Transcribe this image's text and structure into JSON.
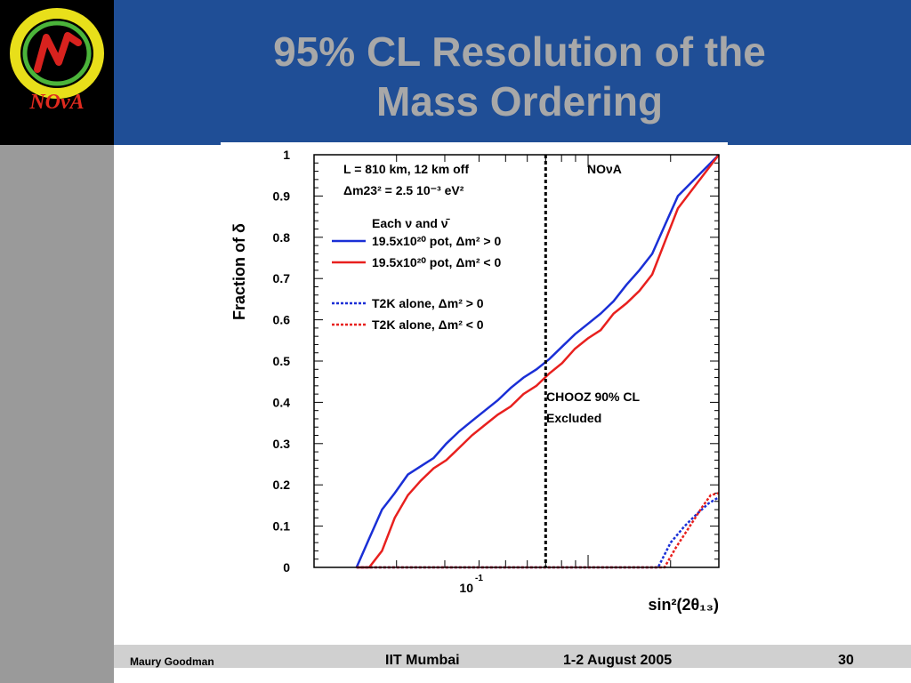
{
  "slide": {
    "title_line1": "95% CL Resolution of the",
    "title_line2": "Mass Ordering",
    "logo_text": "NOvA",
    "colors": {
      "header_bg": "#1f4e96",
      "title_text": "#a8a8a8",
      "sidebar": "#9a9a9a",
      "logo_bg": "#000000"
    }
  },
  "footer": {
    "author": "Maury Goodman",
    "venue": "IIT Mumbai",
    "date": "1-2 August 2005",
    "page": "30"
  },
  "chart_data": {
    "type": "line",
    "ylabel": "Fraction of δ",
    "xlabel": "sin²(2θ₁₃)",
    "x_scale": "log",
    "xlim": [
      0.01,
      0.3
    ],
    "ylim": [
      0,
      1
    ],
    "yticks": [
      "0",
      "0.1",
      "0.2",
      "0.3",
      "0.4",
      "0.5",
      "0.6",
      "0.7",
      "0.8",
      "0.9",
      "1"
    ],
    "xtick_label": "10",
    "xtick_label_exp": "-1",
    "annotations": {
      "line1": "L = 810 km, 12 km off",
      "line2": "Δm23² = 2.5 10⁻³ eV²",
      "experiment": "NOνA",
      "legend_header": "Each ν and ν̄",
      "chooz_line1": "CHOOZ 90% CL",
      "chooz_line2": "Excluded"
    },
    "chooz_limit_x": 0.07,
    "series": [
      {
        "name": "19.5x10²⁰ pot, Δm² > 0",
        "color": "#1a2fd6",
        "dash": "solid",
        "x": [
          0.0143,
          0.0159,
          0.0177,
          0.0197,
          0.022,
          0.0245,
          0.0273,
          0.0304,
          0.0339,
          0.0377,
          0.042,
          0.0468,
          0.0522,
          0.0581,
          0.0648,
          0.0722,
          0.0804,
          0.0896,
          0.0998,
          0.1112,
          0.1239,
          0.1381,
          0.1538,
          0.1714,
          0.1909,
          0.2127,
          0.3
        ],
        "y": [
          0,
          0.07,
          0.14,
          0.18,
          0.225,
          0.245,
          0.265,
          0.3,
          0.33,
          0.355,
          0.38,
          0.405,
          0.435,
          0.46,
          0.48,
          0.505,
          0.535,
          0.565,
          0.59,
          0.615,
          0.645,
          0.685,
          0.72,
          0.76,
          0.83,
          0.9,
          1.0
        ]
      },
      {
        "name": "19.5x10²⁰ pot, Δm² < 0",
        "color": "#e8201e",
        "dash": "solid",
        "x": [
          0.0143,
          0.0159,
          0.0177,
          0.0197,
          0.022,
          0.0245,
          0.0273,
          0.0304,
          0.0339,
          0.0377,
          0.042,
          0.0468,
          0.0522,
          0.0581,
          0.0648,
          0.0722,
          0.0804,
          0.0896,
          0.0998,
          0.1112,
          0.1239,
          0.1381,
          0.1538,
          0.1714,
          0.1909,
          0.2127,
          0.3
        ],
        "y": [
          0,
          0.0,
          0.04,
          0.12,
          0.175,
          0.21,
          0.24,
          0.26,
          0.29,
          0.32,
          0.345,
          0.37,
          0.39,
          0.42,
          0.44,
          0.47,
          0.495,
          0.53,
          0.555,
          0.575,
          0.615,
          0.64,
          0.67,
          0.71,
          0.79,
          0.87,
          1.0
        ]
      },
      {
        "name": "T2K alone, Δm² > 0",
        "color": "#1a2fd6",
        "dash": "dashed",
        "x": [
          0.0143,
          0.18,
          0.2,
          0.225,
          0.25,
          0.275,
          0.3
        ],
        "y": [
          0,
          0,
          0.06,
          0.1,
          0.13,
          0.155,
          0.17
        ]
      },
      {
        "name": "T2K alone, Δm² < 0",
        "color": "#e8201e",
        "dash": "dashed",
        "x": [
          0.0143,
          0.19,
          0.21,
          0.23,
          0.26,
          0.28,
          0.3
        ],
        "y": [
          0,
          0,
          0.05,
          0.09,
          0.145,
          0.175,
          0.18
        ]
      }
    ]
  }
}
